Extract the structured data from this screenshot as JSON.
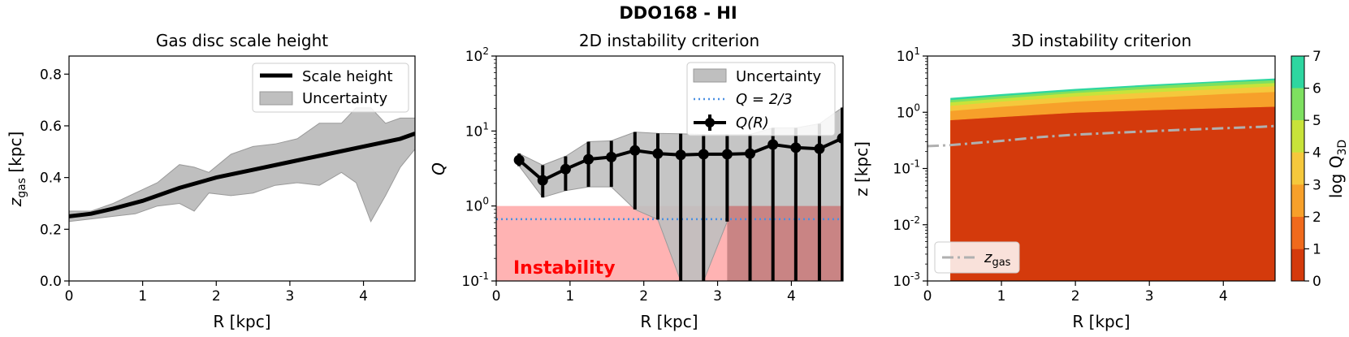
{
  "figure_title": "DDO168 - HI",
  "colors": {
    "scale_line": "#000000",
    "uncertainty_fill": "#bfbfbf",
    "instability_fill": "#ffb3b3",
    "q_line": "#4a90e2",
    "instability_text": "#ff0000",
    "zgas_line": "#b0b0b0",
    "band_colors": [
      "#d43a0c",
      "#f06a1c",
      "#f7a02a",
      "#f5c83c",
      "#c8e33a",
      "#7ee060",
      "#2ed6a0"
    ]
  },
  "chart_data": [
    {
      "id": "scale-height",
      "type": "line",
      "title": "Gas disc scale height",
      "xlabel": "R [kpc]",
      "ylabel_main": "z",
      "ylabel_sub": "gas",
      "ylabel_unit": "[kpc]",
      "xlim": [
        0,
        4.7
      ],
      "ylim": [
        0,
        0.87
      ],
      "xticks": [
        0,
        1,
        2,
        3,
        4
      ],
      "xtick_labels": [
        "0",
        "1",
        "2",
        "3",
        "4"
      ],
      "yticks": [
        0,
        0.2,
        0.4,
        0.6,
        0.8
      ],
      "ytick_labels": [
        "0.0",
        "0.2",
        "0.4",
        "0.6",
        "0.8"
      ],
      "legend": [
        "Scale height",
        "Uncertainty"
      ],
      "series": [
        {
          "name": "Scale height",
          "x": [
            0,
            0.3,
            0.6,
            1.0,
            1.5,
            2.0,
            2.5,
            3.0,
            3.5,
            4.0,
            4.5,
            4.7
          ],
          "y": [
            0.25,
            0.26,
            0.28,
            0.31,
            0.36,
            0.4,
            0.43,
            0.46,
            0.49,
            0.52,
            0.55,
            0.57
          ]
        }
      ],
      "uncertainty": {
        "x": [
          0,
          0.3,
          0.6,
          0.9,
          1.2,
          1.5,
          1.7,
          1.9,
          2.2,
          2.5,
          2.8,
          3.1,
          3.4,
          3.7,
          3.9,
          4.1,
          4.3,
          4.5,
          4.7
        ],
        "upper": [
          0.27,
          0.27,
          0.3,
          0.34,
          0.38,
          0.45,
          0.44,
          0.42,
          0.49,
          0.52,
          0.53,
          0.55,
          0.61,
          0.61,
          0.67,
          0.67,
          0.61,
          0.63,
          0.63
        ],
        "lower": [
          0.23,
          0.24,
          0.25,
          0.26,
          0.29,
          0.3,
          0.27,
          0.34,
          0.33,
          0.34,
          0.37,
          0.38,
          0.37,
          0.42,
          0.38,
          0.23,
          0.33,
          0.44,
          0.51
        ]
      }
    },
    {
      "id": "instability-2d",
      "type": "line",
      "title": "2D instability criterion",
      "xlabel": "R [kpc]",
      "ylabel": "Q",
      "xlim": [
        0,
        4.7
      ],
      "ylim": [
        0.1,
        100
      ],
      "yscale": "log",
      "xticks": [
        0,
        1,
        2,
        3,
        4
      ],
      "xtick_labels": [
        "0",
        "1",
        "2",
        "3",
        "4"
      ],
      "ytick_exponents": [
        "-1",
        "0",
        "1",
        "2"
      ],
      "legend": [
        "Uncertainty",
        "Q = 2/3",
        "Q(R)"
      ],
      "q_threshold": 0.6667,
      "instability_label": "Instability",
      "instability_region": {
        "ymax": 1.0,
        "x_dark_start": 3.13
      },
      "series": [
        {
          "name": "Q(R)",
          "x": [
            0.31,
            0.63,
            0.94,
            1.25,
            1.56,
            1.88,
            2.19,
            2.5,
            2.81,
            3.13,
            3.44,
            3.75,
            4.06,
            4.38,
            4.69
          ],
          "y": [
            4.1,
            2.2,
            3.1,
            4.2,
            4.5,
            5.5,
            5.0,
            4.8,
            4.9,
            4.9,
            5.0,
            6.6,
            6.0,
            5.8,
            8.0
          ],
          "err_low": [
            3.4,
            1.3,
            1.6,
            1.8,
            1.8,
            0.9,
            0.66,
            0.1,
            0.1,
            0.62,
            0.1,
            0.1,
            0.1,
            0.1,
            0.1
          ],
          "err_high": [
            5.0,
            3.5,
            4.6,
            7.2,
            7.4,
            9.7,
            9.3,
            9.2,
            9.0,
            9.0,
            9.0,
            11.0,
            11.0,
            12.5,
            20.5
          ]
        }
      ]
    },
    {
      "id": "instability-3d",
      "type": "heatmap",
      "title": "3D instability criterion",
      "xlabel": "R [kpc]",
      "ylabel": "z [kpc]",
      "xlim": [
        0,
        4.7
      ],
      "ylim": [
        0.001,
        10
      ],
      "yscale": "log",
      "xticks": [
        0,
        1,
        2,
        3,
        4
      ],
      "xtick_labels": [
        "0",
        "1",
        "2",
        "3",
        "4"
      ],
      "ytick_exponents": [
        "-3",
        "-2",
        "-1",
        "0",
        "1"
      ],
      "legend": [
        "z gas"
      ],
      "legend_main": "z",
      "legend_sub": "gas",
      "colorbar_label_main": "log Q",
      "colorbar_label_sub": "3D",
      "colorbar_ticks": [
        "0",
        "1",
        "2",
        "3",
        "4",
        "5",
        "6",
        "7"
      ],
      "data_start_R": 0.31,
      "boundaries": {
        "x": [
          0.31,
          1.0,
          2.0,
          3.0,
          4.0,
          4.7
        ],
        "top": [
          1.8,
          2.1,
          2.6,
          3.1,
          3.6,
          4.0
        ],
        "b6": [
          1.65,
          1.95,
          2.4,
          2.9,
          3.4,
          3.7
        ],
        "b5": [
          1.5,
          1.75,
          2.2,
          2.6,
          3.0,
          3.3
        ],
        "b4": [
          1.3,
          1.55,
          1.9,
          2.25,
          2.6,
          2.9
        ],
        "b3": [
          1.05,
          1.25,
          1.55,
          1.8,
          2.1,
          2.3
        ],
        "b2": [
          0.72,
          0.82,
          0.98,
          1.08,
          1.18,
          1.25
        ]
      },
      "z_gas": {
        "x": [
          0,
          0.3,
          0.6,
          1.0,
          1.5,
          2.0,
          2.5,
          3.0,
          3.5,
          4.0,
          4.5,
          4.7
        ],
        "y": [
          0.25,
          0.26,
          0.28,
          0.31,
          0.36,
          0.4,
          0.43,
          0.46,
          0.49,
          0.52,
          0.55,
          0.57
        ]
      }
    }
  ]
}
